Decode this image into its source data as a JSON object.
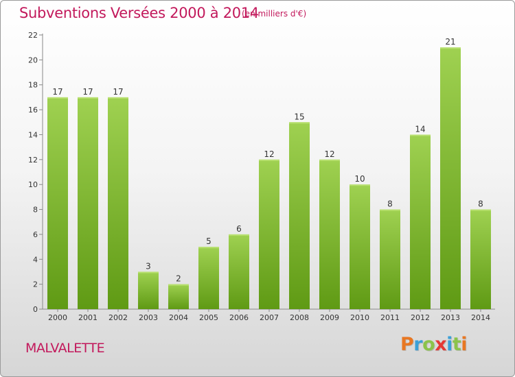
{
  "title": "Subventions Versées 2000 à 2014",
  "subtitle": "(en milliers d'€)",
  "commune": "MALVALETTE",
  "logo": {
    "letters": [
      "P",
      "r",
      "o",
      "x",
      "i",
      "t",
      "i"
    ],
    "colors": [
      "#e87722",
      "#3aa0d8",
      "#8bc34a",
      "#e53935",
      "#3aa0d8",
      "#8bc34a",
      "#e87722"
    ]
  },
  "colors": {
    "bar_top": "#9fd151",
    "bar_bottom": "#5f9a14",
    "title": "#c2185b"
  },
  "chart_data": {
    "type": "bar",
    "title": "Subventions Versées 2000 à 2014",
    "subtitle": "(en milliers d'€)",
    "categories": [
      "2000",
      "2001",
      "2002",
      "2003",
      "2004",
      "2005",
      "2006",
      "2007",
      "2008",
      "2009",
      "2010",
      "2011",
      "2012",
      "2013",
      "2014"
    ],
    "values": [
      17,
      17,
      17,
      3,
      2,
      5,
      6,
      12,
      15,
      12,
      10,
      8,
      14,
      21,
      8
    ],
    "ylim": [
      0,
      22
    ],
    "yticks": [
      0,
      2,
      4,
      6,
      8,
      10,
      12,
      14,
      16,
      18,
      20,
      22
    ],
    "grid": false,
    "data_labels": true
  }
}
